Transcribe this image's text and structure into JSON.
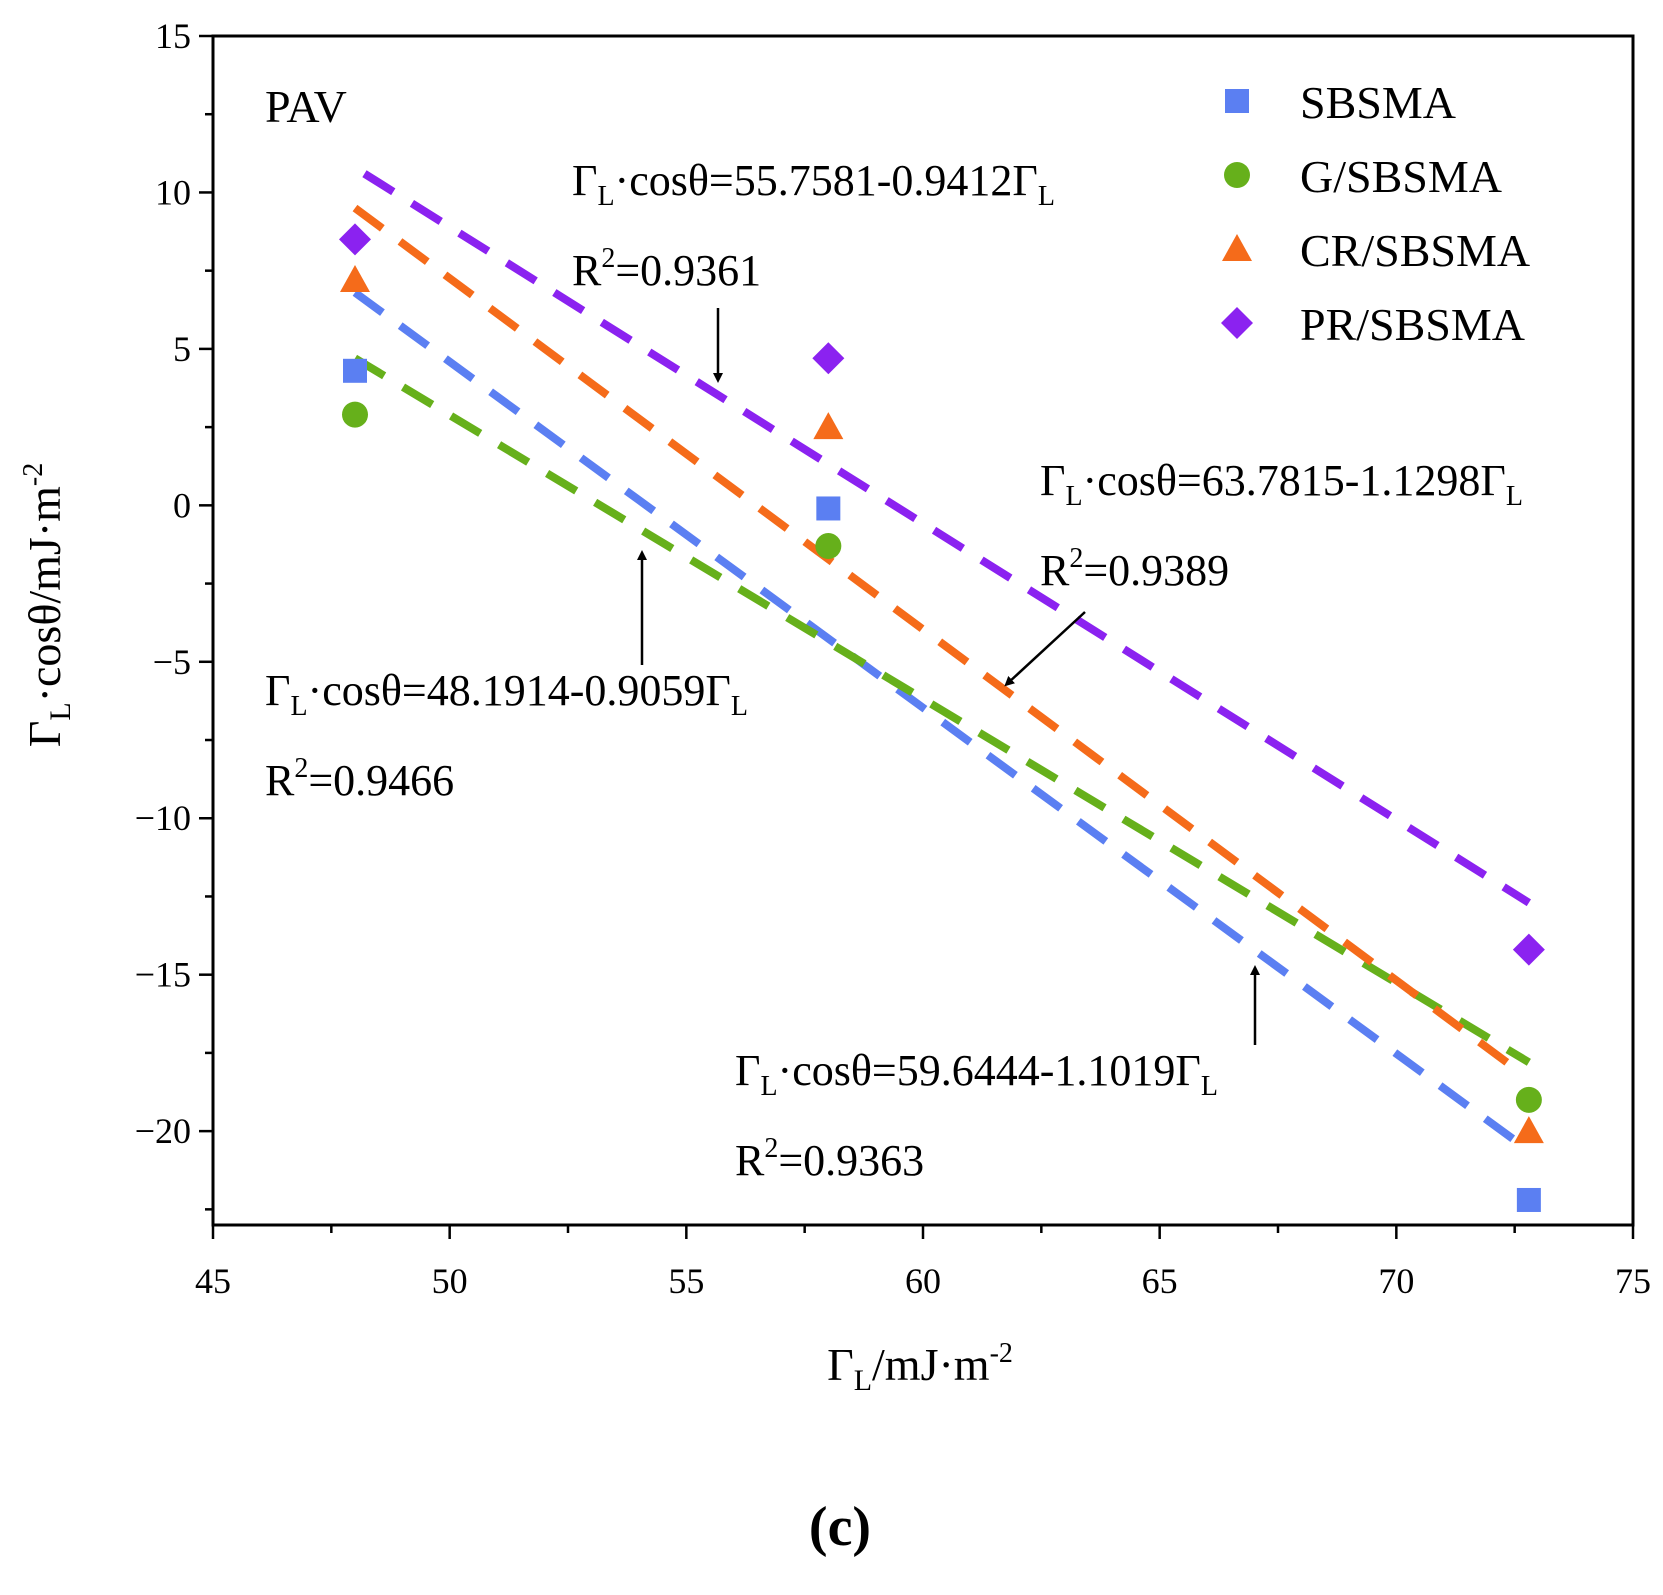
{
  "chart_data": {
    "type": "scatter",
    "panel_tag": "PAV",
    "subfigure_label": "(c)",
    "xlabel": {
      "base": "Γ",
      "sub": "L",
      "rest": "/mJ·m",
      "sup": "-2"
    },
    "ylabel": {
      "base": "Γ",
      "sub": "L",
      "rest": "·cosθ/mJ·m",
      "sup": "-2"
    },
    "xlim": [
      45,
      75
    ],
    "ylim": [
      -23,
      15
    ],
    "x_ticks": [
      45,
      50,
      55,
      60,
      65,
      70,
      75
    ],
    "x_tick_labels": [
      "45",
      "50",
      "55",
      "60",
      "65",
      "70",
      "75"
    ],
    "y_ticks": [
      15,
      10,
      5,
      0,
      -5,
      -10,
      -15,
      -20
    ],
    "y_tick_labels": [
      "15",
      "10",
      "5",
      "0",
      "−5",
      "−10",
      "−15",
      "−20"
    ],
    "grid": false,
    "legend_position": "top-right",
    "series": [
      {
        "name": "SBSMA",
        "marker": "square",
        "color": "#5b7ff2",
        "x": [
          48.0,
          58.0,
          72.8
        ],
        "y": [
          4.3,
          -0.1,
          -22.2
        ],
        "fit": {
          "x": [
            48.0,
            72.6
          ],
          "y": [
            6.8,
            -20.4
          ]
        }
      },
      {
        "name": "G/SBSMA",
        "marker": "circle",
        "color": "#66b01b",
        "x": [
          48.0,
          58.0,
          72.8
        ],
        "y": [
          2.9,
          -1.3,
          -19.0
        ],
        "fit": {
          "x": [
            48.0,
            72.8
          ],
          "y": [
            4.7,
            -17.8
          ]
        }
      },
      {
        "name": "CR/SBSMA",
        "marker": "triangle",
        "color": "#f56b1a",
        "x": [
          48.0,
          58.0,
          72.8
        ],
        "y": [
          7.2,
          2.5,
          -20.0
        ],
        "fit": {
          "x": [
            48.0,
            72.6
          ],
          "y": [
            9.5,
            -18.1
          ]
        }
      },
      {
        "name": "PR/SBSMA",
        "marker": "diamond",
        "color": "#8b22f0",
        "x": [
          48.0,
          58.0,
          72.8
        ],
        "y": [
          8.5,
          4.7,
          -14.2
        ],
        "fit": {
          "x": [
            48.2,
            72.8
          ],
          "y": [
            10.6,
            -12.7
          ]
        }
      }
    ],
    "annotations": [
      {
        "base": "Γ",
        "sub": "L",
        "mid": "·cosθ=55.7581-0.9412Γ",
        "sub2": "L",
        "r2_base": "R",
        "r2_sup": "2",
        "r2_rest": "=0.9361"
      },
      {
        "base": "Γ",
        "sub": "L",
        "mid": "·cosθ=63.7815-1.1298Γ",
        "sub2": "L",
        "r2_base": "R",
        "r2_sup": "2",
        "r2_rest": "=0.9389"
      },
      {
        "base": "Γ",
        "sub": "L",
        "mid": "·cosθ=48.1914-0.9059Γ",
        "sub2": "L",
        "r2_base": "R",
        "r2_sup": "2",
        "r2_rest": "=0.9466"
      },
      {
        "base": "Γ",
        "sub": "L",
        "mid": "·cosθ=59.6444-1.1019Γ",
        "sub2": "L",
        "r2_base": "R",
        "r2_sup": "2",
        "r2_rest": "=0.9363"
      }
    ]
  }
}
